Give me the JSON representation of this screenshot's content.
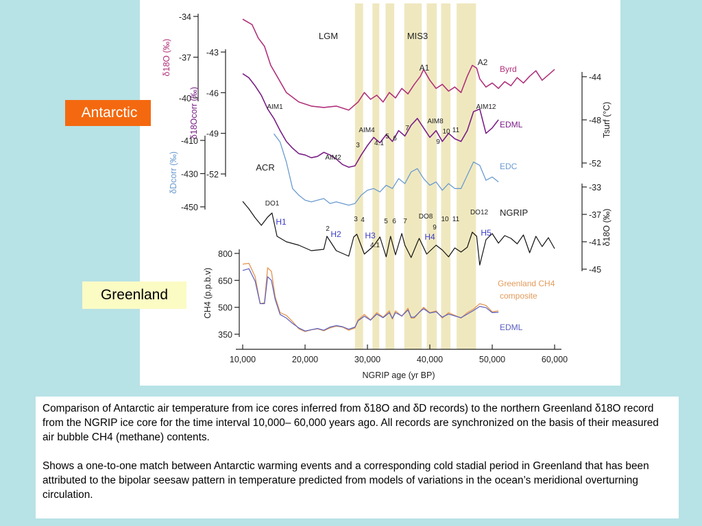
{
  "labels": {
    "antarctic": "Antarctic",
    "greenland": "Greenland"
  },
  "caption": {
    "paragraph1": "Comparison of Antarctic air temperature from ice cores inferred from δ18O and δD records) to the northern Greenland δ18O record from the NGRIP ice core for the time interval 10,000– 60,000 years ago.  All records are synchronized on the basis of their measured air bubble CH4 (methane) contents.",
    "paragraph2": "Shows a one-to-one match between Antarctic warming events and a corresponding cold stadial period in Greenland that has been attributed to the bipolar seesaw pattern in temperature predicted from models of variations in the ocean’s meridional overturning circulation."
  },
  "colors": {
    "background": "#b7e2e6",
    "byrd": "#b0307a",
    "edml": "#7a1e86",
    "edc": "#6a9ad0",
    "ngrip": "#111111",
    "ch4_composite": "#e39a5a",
    "ch4_edml": "#5a5ec0",
    "band": "#ece4b4",
    "antarctic_label": "#f4690f",
    "greenland_label": "#fbfbc4",
    "h_label": "#3a3ac8"
  },
  "chart_data": {
    "type": "line",
    "xlabel": "NGRIP age (yr BP)",
    "x_ticks": [
      "10,000",
      "20,000",
      "30,000",
      "40,000",
      "50,000",
      "60,000"
    ],
    "x_tick_values": [
      10000,
      20000,
      30000,
      40000,
      50000,
      60000
    ],
    "xlim": [
      10000,
      60000
    ],
    "axes": [
      {
        "label": "δ18O (‰)",
        "side": "left",
        "ticks": [
          "-34",
          "-37",
          "-40"
        ],
        "tick_values": [
          -34,
          -37,
          -40
        ]
      },
      {
        "label": "δ18Ocorr (‰)",
        "side": "left",
        "ticks": [
          "-43",
          "-46",
          "-49",
          "-52"
        ],
        "tick_values": [
          -43,
          -46,
          -49,
          -52
        ]
      },
      {
        "label": "δDcorr (‰)",
        "side": "left",
        "ticks": [
          "-410",
          "-430",
          "-450"
        ],
        "tick_values": [
          -410,
          -430,
          -450
        ]
      },
      {
        "label": "Tsurf (°C)",
        "side": "right",
        "ticks": [
          "-44",
          "-48",
          "-52"
        ],
        "tick_values": [
          -44,
          -48,
          -52
        ]
      },
      {
        "label": "δ18O (‰)",
        "side": "right",
        "ticks": [
          "-33",
          "-37",
          "-41",
          "-45"
        ],
        "tick_values": [
          -33,
          -37,
          -41,
          -45
        ]
      },
      {
        "label": "CH4 (p.p.b.v)",
        "side": "left",
        "ticks": [
          "800",
          "650",
          "500",
          "350"
        ],
        "tick_values": [
          800,
          650,
          500,
          350
        ]
      }
    ],
    "series": [
      {
        "name": "Byrd",
        "color": "#b0307a",
        "x": [
          10000,
          11500,
          12500,
          13500,
          14500,
          15500,
          17000,
          19000,
          21000,
          23000,
          25000,
          27000,
          28500,
          29500,
          30500,
          31500,
          32500,
          33500,
          34500,
          35500,
          36500,
          37500,
          38500,
          39000,
          40000,
          41000,
          42000,
          43000,
          44000,
          45000,
          46000,
          46800,
          47500,
          48000,
          49000,
          50000,
          51000,
          52000,
          53000,
          54000,
          55000,
          56000,
          57000,
          58000,
          59000,
          60000
        ],
        "values": [
          -34.2,
          -34.6,
          -35.6,
          -36.2,
          -37.6,
          -38.4,
          -39.6,
          -40.3,
          -40.6,
          -40.7,
          -40.6,
          -40.9,
          -40.3,
          -39.6,
          -40.1,
          -39.8,
          -40.3,
          -39.6,
          -40.0,
          -39.3,
          -39.7,
          -39.0,
          -38.4,
          -37.9,
          -38.7,
          -39.3,
          -39.0,
          -39.5,
          -39.2,
          -39.6,
          -38.4,
          -37.6,
          -37.8,
          -38.6,
          -39.2,
          -38.9,
          -39.3,
          -38.8,
          -39.1,
          -38.5,
          -38.9,
          -38.4,
          -38.0,
          -38.7,
          -38.3,
          -37.9
        ]
      },
      {
        "name": "EDML",
        "color": "#7a1e86",
        "x": [
          10000,
          11000,
          12000,
          13000,
          14000,
          15000,
          16000,
          17000,
          18000,
          19000,
          20000,
          21000,
          22000,
          23000,
          24000,
          25000,
          26000,
          27000,
          28000,
          29000,
          30000,
          31000,
          32000,
          33000,
          34000,
          35000,
          36000,
          37000,
          38000,
          39000,
          40000,
          41000,
          42000,
          43000,
          44000,
          45000,
          46000,
          47000,
          48000,
          49000,
          50000,
          51000
        ],
        "values": [
          -44.6,
          -44.9,
          -45.5,
          -46.2,
          -47.2,
          -47.9,
          -48.8,
          -49.6,
          -50.1,
          -50.5,
          -50.6,
          -50.8,
          -50.7,
          -50.4,
          -50.6,
          -50.9,
          -51.3,
          -51.5,
          -51.4,
          -50.6,
          -49.9,
          -49.3,
          -49.7,
          -49.1,
          -49.6,
          -48.8,
          -49.2,
          -48.4,
          -47.9,
          -48.6,
          -49.3,
          -48.8,
          -49.6,
          -49.0,
          -49.4,
          -49.6,
          -48.8,
          -47.4,
          -47.2,
          -49.0,
          -48.6,
          -48.0
        ]
      },
      {
        "name": "EDC",
        "color": "#6a9ad0",
        "x": [
          15000,
          16000,
          17000,
          18000,
          19000,
          20000,
          21000,
          22000,
          23000,
          24000,
          25000,
          26000,
          27000,
          28000,
          29000,
          30000,
          31000,
          32000,
          33000,
          34000,
          35000,
          36000,
          37000,
          38000,
          39000,
          40000,
          41000,
          42000,
          43000,
          44000,
          45000,
          46000,
          47000,
          48000,
          49000,
          50000,
          51000
        ],
        "values": [
          -406,
          -411,
          -423,
          -439,
          -443,
          -446,
          -447,
          -446,
          -445,
          -448,
          -447,
          -448,
          -449,
          -448,
          -443,
          -440,
          -439,
          -441,
          -437,
          -439,
          -433,
          -436,
          -429,
          -427,
          -433,
          -437,
          -435,
          -440,
          -436,
          -439,
          -439,
          -431,
          -423,
          -425,
          -434,
          -432,
          -435
        ]
      },
      {
        "name": "NGRIP",
        "color": "#111111",
        "x": [
          10000,
          11000,
          12000,
          13000,
          14000,
          14700,
          15500,
          17000,
          19000,
          21000,
          23000,
          23500,
          25000,
          27000,
          27800,
          28300,
          29500,
          31000,
          32000,
          33000,
          33700,
          34500,
          35500,
          36000,
          37000,
          38000,
          38300,
          39500,
          41000,
          42000,
          43000,
          44000,
          45000,
          46000,
          46800,
          47500,
          48000,
          49000,
          50000,
          51000,
          52000,
          53000,
          54000,
          55000,
          56000,
          57000,
          58000,
          59000,
          60000
        ],
        "values": [
          -35.1,
          -36.2,
          -37.5,
          -38.6,
          -37.4,
          -36.8,
          -40.2,
          -41.0,
          -41.5,
          -42.3,
          -42.1,
          -40.2,
          -42.3,
          -43.1,
          -40.3,
          -39.9,
          -42.8,
          -41.6,
          -40.3,
          -43.2,
          -40.2,
          -42.9,
          -39.8,
          -41.5,
          -43.3,
          -41.1,
          -40.5,
          -42.8,
          -41.5,
          -42.2,
          -43.2,
          -41.9,
          -42.5,
          -41.8,
          -39.6,
          -40.2,
          -44.4,
          -40.7,
          -39.8,
          -41.2,
          -40.1,
          -40.5,
          -41.3,
          -40.0,
          -42.6,
          -40.2,
          -41.7,
          -40.4,
          -42.0
        ]
      },
      {
        "name": "Greenland CH4 composite",
        "color": "#e39a5a",
        "x": [
          10000,
          11000,
          12000,
          12800,
          13500,
          14000,
          14600,
          15200,
          16000,
          17000,
          18000,
          19000,
          20000,
          21000,
          22000,
          23000,
          24000,
          25000,
          26000,
          27000,
          28000,
          28500,
          29500,
          30500,
          31500,
          32500,
          33500,
          34000,
          34500,
          35500,
          36500,
          37000,
          37500,
          38500,
          39000,
          40000,
          41000,
          42000,
          43000,
          44000,
          45000,
          46000,
          47000,
          48000,
          49000,
          50000,
          51000
        ],
        "values": [
          740,
          745,
          670,
          520,
          525,
          720,
          700,
          560,
          470,
          455,
          420,
          380,
          365,
          375,
          380,
          370,
          385,
          395,
          390,
          372,
          385,
          430,
          460,
          430,
          470,
          445,
          480,
          435,
          480,
          450,
          495,
          440,
          440,
          480,
          500,
          470,
          480,
          440,
          470,
          455,
          440,
          470,
          490,
          520,
          510,
          475,
          480
        ]
      },
      {
        "name": "EDML",
        "color": "#5a5ec0",
        "x": [
          10000,
          11000,
          12000,
          12800,
          13500,
          14000,
          14600,
          15200,
          16000,
          17000,
          18000,
          19000,
          20000,
          21000,
          22000,
          23000,
          24000,
          25000,
          26000,
          27000,
          28000,
          28500,
          29500,
          30500,
          31500,
          32500,
          33500,
          34000,
          34500,
          35500,
          36500,
          37000,
          37500,
          38500,
          39000,
          40000,
          41000,
          42000,
          43000,
          44000,
          45000,
          46000,
          47000,
          48000,
          49000,
          50000,
          51000
        ],
        "values": [
          705,
          715,
          645,
          520,
          520,
          670,
          650,
          545,
          460,
          440,
          410,
          385,
          368,
          375,
          382,
          372,
          390,
          398,
          392,
          378,
          390,
          425,
          450,
          428,
          462,
          442,
          470,
          438,
          470,
          452,
          485,
          445,
          445,
          478,
          492,
          468,
          475,
          445,
          462,
          452,
          442,
          462,
          482,
          505,
          498,
          470,
          472
        ]
      }
    ],
    "series_labels": [
      "Byrd",
      "EDML",
      "EDC",
      "NGRIP",
      "Greenland CH4",
      "composite",
      "EDML"
    ],
    "bands_x": [
      28000,
      29300,
      30800,
      31900,
      32900,
      34300,
      35900,
      38700,
      39500,
      41100,
      41800,
      43300,
      44300,
      47400,
      48400
    ],
    "annotations": {
      "periods": [
        "LGM",
        "MIS3"
      ],
      "antarctic_events": [
        "A1",
        "A2",
        "AIM1",
        "AIM2",
        "AIM4",
        "AIM8",
        "AIM12",
        "ACR",
        "3",
        "4.1",
        "5",
        "6",
        "7",
        "9",
        "10",
        "11"
      ],
      "greenland_events": [
        "DO1",
        "2",
        "3",
        "4",
        "4.1",
        "5",
        "6",
        "7",
        "DO8",
        "9",
        "10",
        "11",
        "DO12"
      ],
      "heinrich_events": [
        "H1",
        "H2",
        "H3",
        "H4",
        "H5"
      ]
    }
  }
}
